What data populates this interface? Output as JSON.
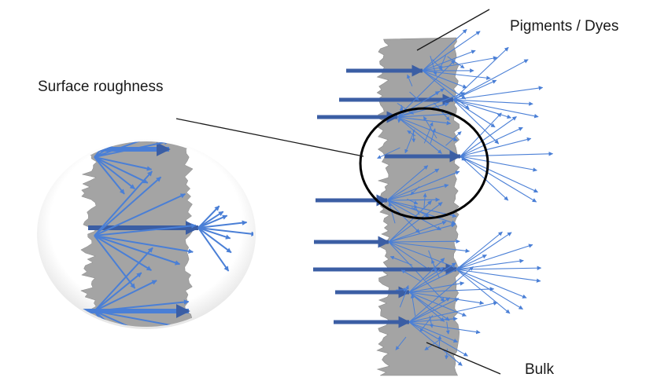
{
  "labels": {
    "pigments": "Pigments /  Dyes",
    "surface_roughness": "Surface roughness",
    "bulk": "Bulk"
  },
  "colors": {
    "slab": "#a4a4a4",
    "arrow_dark": "#3b5ea4",
    "arrow_light": "#4a7fd6",
    "leader": "#1a1a1a"
  }
}
